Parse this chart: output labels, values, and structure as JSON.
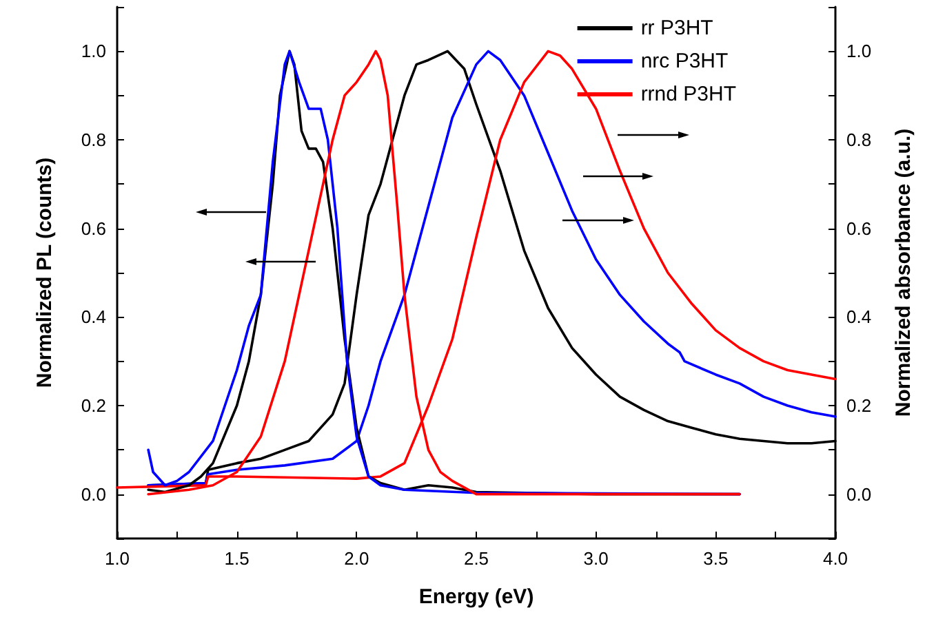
{
  "chart_data": {
    "type": "line",
    "xlabel": "Energy (eV)",
    "ylabel": "Normalized PL (counts)",
    "y2label": "Normalized absorbance (a.u.)",
    "xlim": [
      1.0,
      4.0
    ],
    "xticks": [
      {
        "value": 1.0,
        "label": "1.0"
      },
      {
        "value": 1.25,
        "label": null
      },
      {
        "value": 1.5,
        "label": "1.5"
      },
      {
        "value": 1.75,
        "label": null
      },
      {
        "value": 2.0,
        "label": "2.0"
      },
      {
        "value": 2.25,
        "label": null
      },
      {
        "value": 2.5,
        "label": "2.5"
      },
      {
        "value": 2.75,
        "label": null
      },
      {
        "value": 3.0,
        "label": "3.0"
      },
      {
        "value": 3.25,
        "label": null
      },
      {
        "value": 3.5,
        "label": "3.5"
      },
      {
        "value": 3.75,
        "label": null
      },
      {
        "value": 4.0,
        "label": "4.0"
      }
    ],
    "ylim": [
      -0.1,
      1.1
    ],
    "yticks": [
      {
        "value": -0.1,
        "label": null
      },
      {
        "value": 0,
        "label": "0.0"
      },
      {
        "value": 0.1,
        "label": null
      },
      {
        "value": 0.2,
        "label": "0.2"
      },
      {
        "value": 0.3,
        "label": null
      },
      {
        "value": 0.4,
        "label": "0.4"
      },
      {
        "value": 0.5,
        "label": null
      },
      {
        "value": 0.6,
        "label": "0.6"
      },
      {
        "value": 0.7,
        "label": null
      },
      {
        "value": 0.8,
        "label": "0.8"
      },
      {
        "value": 0.9,
        "label": null
      },
      {
        "value": 1.0,
        "label": "1.0"
      },
      {
        "value": 1.1,
        "label": null
      }
    ],
    "y2lim": [
      -0.1,
      1.1
    ],
    "y2ticks": [
      {
        "value": -0.1,
        "label": null
      },
      {
        "value": 0,
        "label": "0.0"
      },
      {
        "value": 0.1,
        "label": null
      },
      {
        "value": 0.2,
        "label": "0.2"
      },
      {
        "value": 0.3,
        "label": null
      },
      {
        "value": 0.4,
        "label": "0.4"
      },
      {
        "value": 0.5,
        "label": null
      },
      {
        "value": 0.6,
        "label": "0.6"
      },
      {
        "value": 0.7,
        "label": null
      },
      {
        "value": 0.8,
        "label": "0.8"
      },
      {
        "value": 0.9,
        "label": null
      },
      {
        "value": 1.0,
        "label": "1.0"
      },
      {
        "value": 1.1,
        "label": null
      }
    ],
    "grid": false,
    "legend": "top right",
    "marker": "none",
    "line_style": "solid",
    "series": [
      {
        "name": "rr P3HT",
        "color": "#000000",
        "x": [
          1.13,
          1.2,
          1.3,
          1.35,
          1.4,
          1.5,
          1.55,
          1.6,
          1.65,
          1.68,
          1.72,
          1.74,
          1.77,
          1.8,
          1.83,
          1.86,
          1.9,
          1.95,
          2.0,
          2.05,
          2.1,
          2.2,
          2.3,
          2.4,
          2.5,
          3.0,
          3.6
        ],
        "values": [
          0.01,
          0.005,
          0.02,
          0.04,
          0.07,
          0.2,
          0.3,
          0.45,
          0.7,
          0.9,
          1.0,
          0.97,
          0.82,
          0.78,
          0.78,
          0.75,
          0.6,
          0.35,
          0.15,
          0.04,
          0.025,
          0.01,
          0.02,
          0.015,
          0.005,
          0.0,
          0.0
        ]
      },
      {
        "name": "nrc P3HT",
        "color": "#0000ff",
        "x": [
          1.13,
          1.15,
          1.2,
          1.25,
          1.3,
          1.4,
          1.5,
          1.55,
          1.6,
          1.65,
          1.7,
          1.72,
          1.76,
          1.8,
          1.85,
          1.88,
          1.92,
          1.96,
          2.0,
          2.05,
          2.1,
          2.2,
          2.5,
          3.6
        ],
        "values": [
          0.1,
          0.05,
          0.02,
          0.03,
          0.05,
          0.12,
          0.28,
          0.38,
          0.45,
          0.75,
          0.97,
          1.0,
          0.93,
          0.87,
          0.87,
          0.8,
          0.6,
          0.3,
          0.13,
          0.04,
          0.02,
          0.01,
          0.003,
          0.0
        ]
      },
      {
        "name": "rrnd P3HT",
        "color": "#ff0000",
        "x": [
          1.13,
          1.3,
          1.4,
          1.5,
          1.6,
          1.7,
          1.8,
          1.9,
          1.95,
          2.0,
          2.05,
          2.08,
          2.1,
          2.13,
          2.17,
          2.2,
          2.25,
          2.3,
          2.35,
          2.4,
          2.5,
          3.6
        ],
        "values": [
          0.0,
          0.01,
          0.02,
          0.05,
          0.13,
          0.3,
          0.55,
          0.8,
          0.9,
          0.93,
          0.97,
          1.0,
          0.98,
          0.9,
          0.65,
          0.45,
          0.22,
          0.1,
          0.05,
          0.03,
          0.0,
          0.0
        ]
      },
      {
        "color": "#000000",
        "axis": "y2",
        "x": [
          1.13,
          1.37,
          1.38,
          1.5,
          1.6,
          1.7,
          1.8,
          1.9,
          1.95,
          2.0,
          2.05,
          2.1,
          2.15,
          2.2,
          2.25,
          2.3,
          2.38,
          2.45,
          2.5,
          2.6,
          2.7,
          2.8,
          2.9,
          3.0,
          3.1,
          3.2,
          3.3,
          3.4,
          3.5,
          3.6,
          3.7,
          3.8,
          3.9,
          4.0
        ],
        "values": [
          0.02,
          0.025,
          0.055,
          0.07,
          0.08,
          0.1,
          0.12,
          0.18,
          0.25,
          0.45,
          0.63,
          0.7,
          0.8,
          0.9,
          0.97,
          0.98,
          1.0,
          0.96,
          0.88,
          0.73,
          0.55,
          0.42,
          0.33,
          0.27,
          0.22,
          0.19,
          0.165,
          0.15,
          0.135,
          0.125,
          0.12,
          0.115,
          0.115,
          0.12
        ]
      },
      {
        "color": "#0000ff",
        "axis": "y2",
        "x": [
          1.13,
          1.37,
          1.38,
          1.5,
          1.7,
          1.9,
          2.0,
          2.05,
          2.1,
          2.2,
          2.3,
          2.4,
          2.5,
          2.55,
          2.6,
          2.7,
          2.8,
          2.9,
          3.0,
          3.1,
          3.2,
          3.3,
          3.35,
          3.37,
          3.5,
          3.6,
          3.7,
          3.8,
          3.9,
          4.0
        ],
        "values": [
          0.02,
          0.025,
          0.045,
          0.055,
          0.065,
          0.08,
          0.12,
          0.2,
          0.3,
          0.45,
          0.65,
          0.85,
          0.97,
          1.0,
          0.98,
          0.9,
          0.77,
          0.64,
          0.53,
          0.45,
          0.39,
          0.34,
          0.32,
          0.3,
          0.27,
          0.25,
          0.22,
          0.2,
          0.185,
          0.175
        ]
      },
      {
        "color": "#ff0000",
        "axis": "y2",
        "x": [
          1.0,
          1.37,
          1.38,
          1.5,
          1.7,
          2.0,
          2.1,
          2.2,
          2.3,
          2.4,
          2.5,
          2.6,
          2.7,
          2.8,
          2.85,
          2.9,
          3.0,
          3.1,
          3.2,
          3.3,
          3.4,
          3.5,
          3.6,
          3.7,
          3.8,
          3.9,
          4.0
        ],
        "values": [
          0.015,
          0.02,
          0.04,
          0.04,
          0.038,
          0.035,
          0.04,
          0.07,
          0.2,
          0.35,
          0.58,
          0.8,
          0.93,
          1.0,
          0.99,
          0.96,
          0.87,
          0.73,
          0.6,
          0.5,
          0.43,
          0.37,
          0.33,
          0.3,
          0.28,
          0.27,
          0.26
        ]
      }
    ]
  }
}
